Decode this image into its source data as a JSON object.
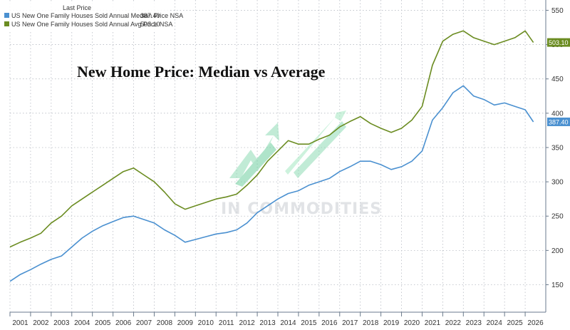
{
  "chart_data": {
    "type": "line",
    "title": "New Home Price: Median vs Average",
    "xlabel": "",
    "ylabel": "",
    "x_ticks": [
      "2001",
      "2002",
      "2003",
      "2004",
      "2005",
      "2006",
      "2007",
      "2008",
      "2009",
      "2010",
      "2011",
      "2012",
      "2013",
      "2014",
      "2015",
      "2016",
      "2017",
      "2018",
      "2019",
      "2020",
      "2021",
      "2022",
      "2023",
      "2024",
      "2025",
      "2026"
    ],
    "y_ticks": [
      150,
      200,
      250,
      300,
      350,
      400,
      450,
      500,
      550
    ],
    "xlim": [
      2000.5,
      2026.5
    ],
    "ylim": [
      110,
      565
    ],
    "y_axis_side": "right",
    "grid": true,
    "legend": {
      "title": "Last Price",
      "placement": "top-left"
    },
    "series": [
      {
        "name": "US New One Family Houses Sold Annual Median Price NSA",
        "last_price": "387.40",
        "color": "#4a90d0",
        "x": [
          2000.5,
          2001.0,
          2001.5,
          2002.0,
          2002.5,
          2003.0,
          2003.5,
          2004.0,
          2004.5,
          2005.0,
          2005.5,
          2006.0,
          2006.5,
          2007.0,
          2007.5,
          2008.0,
          2008.5,
          2009.0,
          2009.5,
          2010.0,
          2010.5,
          2011.0,
          2011.5,
          2012.0,
          2012.5,
          2013.0,
          2013.5,
          2014.0,
          2014.5,
          2015.0,
          2015.5,
          2016.0,
          2016.5,
          2017.0,
          2017.5,
          2018.0,
          2018.5,
          2019.0,
          2019.5,
          2020.0,
          2020.5,
          2021.0,
          2021.5,
          2022.0,
          2022.5,
          2023.0,
          2023.5,
          2024.0,
          2024.5,
          2025.0,
          2025.5,
          2025.9
        ],
        "values": [
          155,
          165,
          172,
          180,
          187,
          192,
          205,
          218,
          228,
          236,
          242,
          248,
          250,
          245,
          240,
          230,
          222,
          212,
          216,
          220,
          224,
          226,
          230,
          240,
          255,
          265,
          275,
          283,
          287,
          295,
          300,
          305,
          315,
          322,
          330,
          330,
          325,
          318,
          322,
          330,
          345,
          390,
          408,
          430,
          440,
          425,
          420,
          412,
          415,
          410,
          405,
          387.4
        ]
      },
      {
        "name": "US New One Family Houses Sold Annual Avg Price NSA",
        "last_price": "503.10",
        "color": "#6b8c21",
        "x": [
          2000.5,
          2001.0,
          2001.5,
          2002.0,
          2002.5,
          2003.0,
          2003.5,
          2004.0,
          2004.5,
          2005.0,
          2005.5,
          2006.0,
          2006.5,
          2007.0,
          2007.5,
          2008.0,
          2008.5,
          2009.0,
          2009.5,
          2010.0,
          2010.5,
          2011.0,
          2011.5,
          2012.0,
          2012.5,
          2013.0,
          2013.5,
          2014.0,
          2014.5,
          2015.0,
          2015.5,
          2016.0,
          2016.5,
          2017.0,
          2017.5,
          2018.0,
          2018.5,
          2019.0,
          2019.5,
          2020.0,
          2020.5,
          2021.0,
          2021.5,
          2022.0,
          2022.5,
          2023.0,
          2023.5,
          2024.0,
          2024.5,
          2025.0,
          2025.5,
          2025.9
        ],
        "values": [
          205,
          212,
          218,
          225,
          240,
          250,
          265,
          275,
          285,
          295,
          305,
          315,
          320,
          310,
          300,
          285,
          268,
          260,
          265,
          270,
          275,
          278,
          282,
          295,
          310,
          330,
          345,
          360,
          355,
          355,
          362,
          368,
          380,
          388,
          395,
          385,
          378,
          372,
          378,
          390,
          410,
          470,
          505,
          515,
          520,
          510,
          505,
          500,
          505,
          510,
          520,
          503.1
        ]
      }
    ]
  },
  "watermark": "IN COMMODITIES"
}
